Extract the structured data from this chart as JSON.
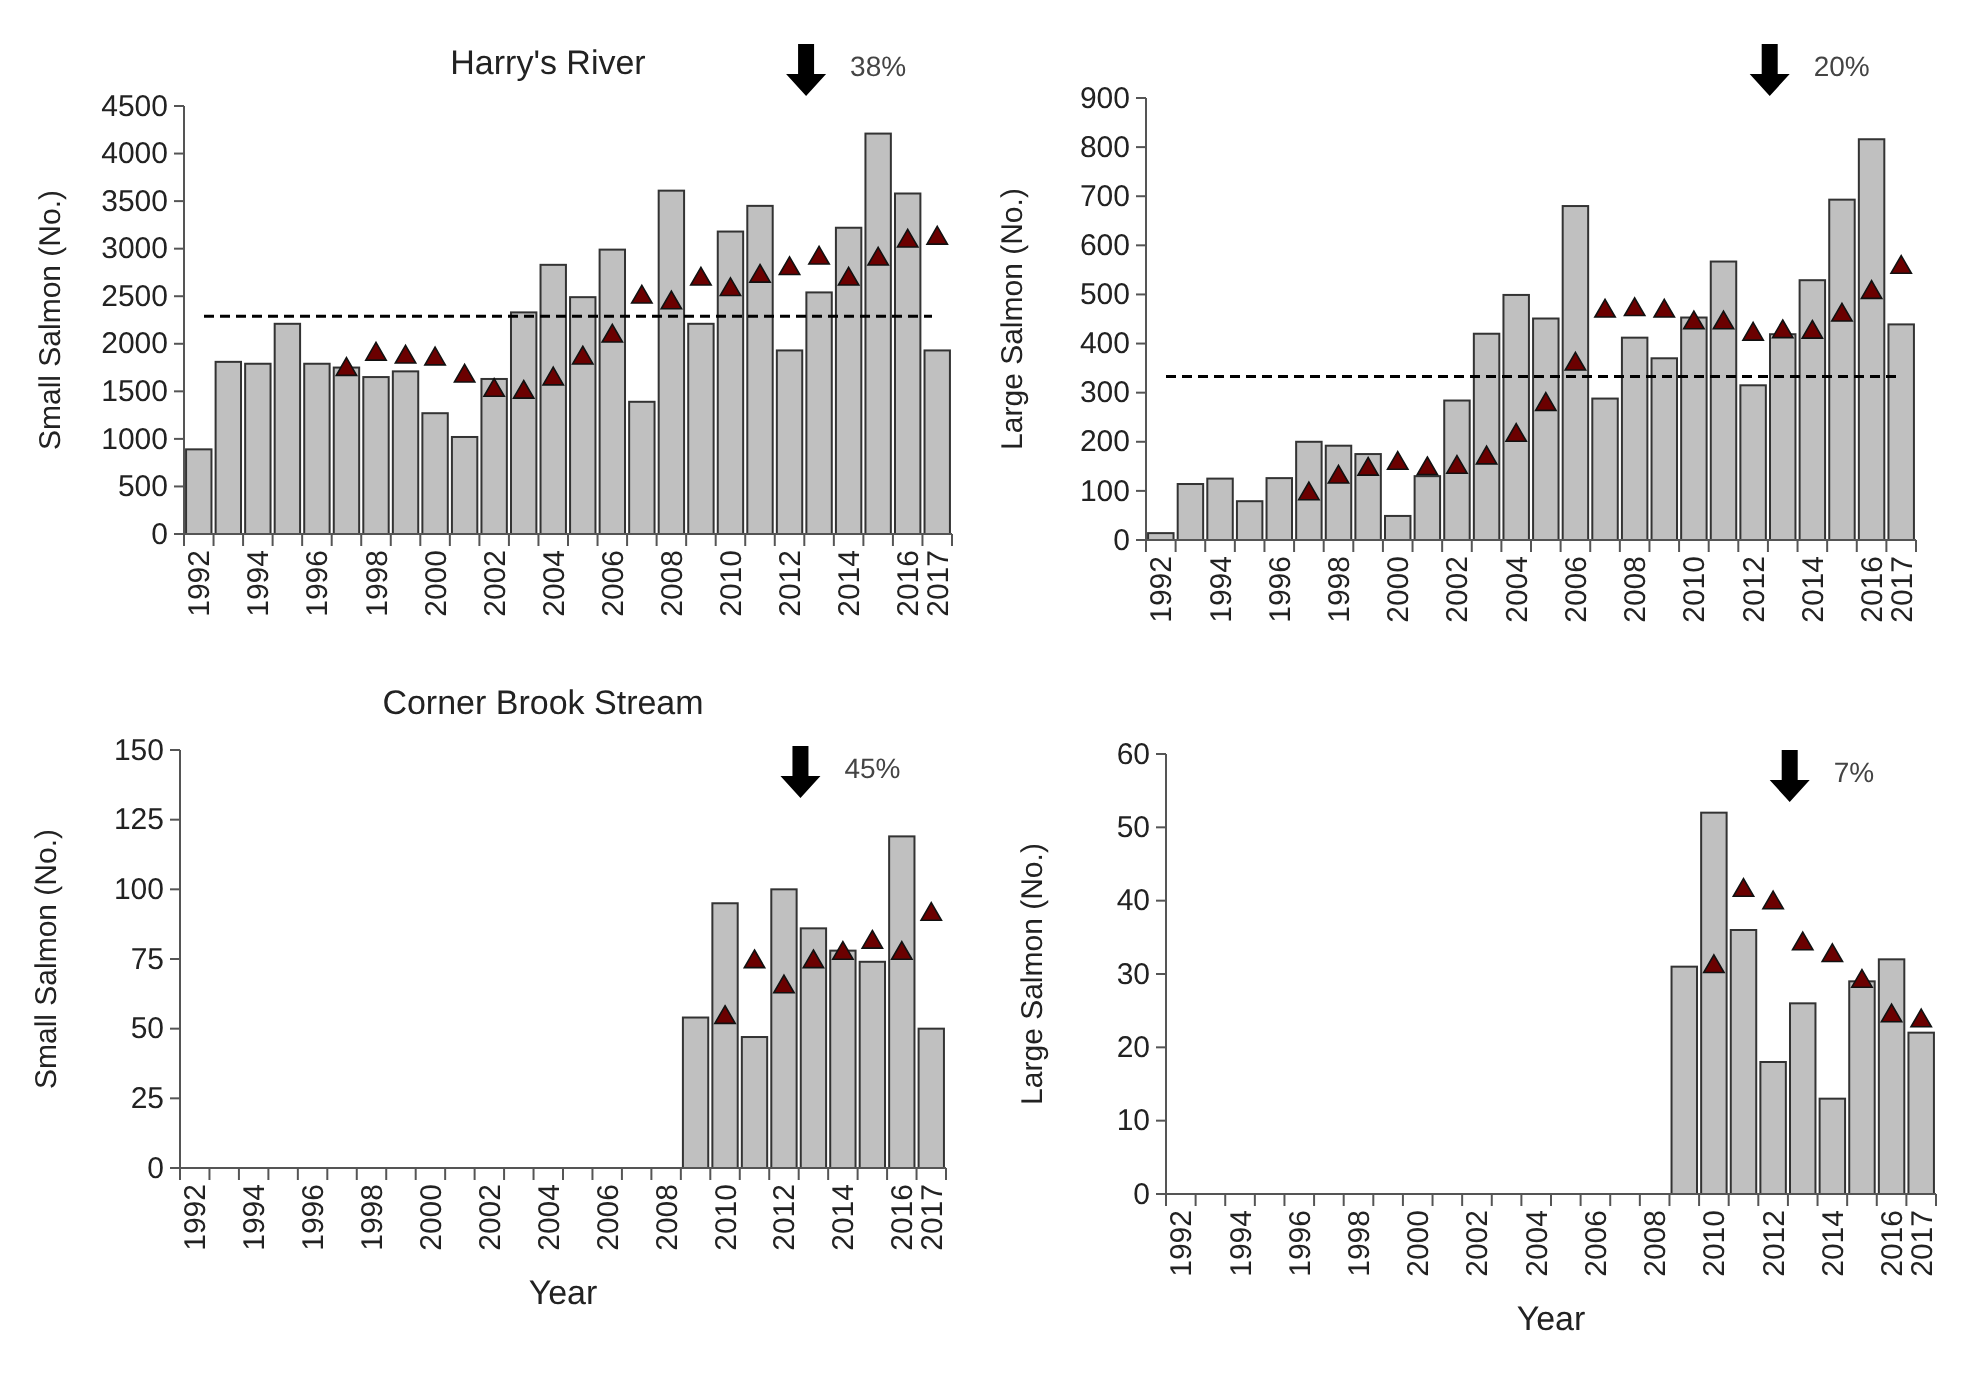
{
  "chart_data": [
    {
      "type": "bar",
      "title": "Harry's River",
      "ylabel": "Small Salmon  (No.)",
      "categories": [
        "1992",
        null,
        "1994",
        null,
        "1996",
        null,
        "1998",
        null,
        "2000",
        null,
        "2002",
        null,
        "2004",
        null,
        "2006",
        null,
        "2008",
        null,
        "2010",
        null,
        "2012",
        null,
        "2014",
        null,
        "2016",
        "2017"
      ],
      "series": [
        {
          "type": "bar",
          "color": "#c0c0c0",
          "values": [
            890,
            1810,
            1790,
            2210,
            1790,
            1750,
            1650,
            1710,
            1270,
            1020,
            1630,
            2330,
            2830,
            2490,
            2990,
            1390,
            3610,
            2210,
            3180,
            3450,
            1930,
            2540,
            3220,
            4210,
            3580,
            1930
          ]
        },
        {
          "type": "scatter",
          "color": "#6b0000",
          "marker": "triangle",
          "values": [
            null,
            null,
            null,
            null,
            null,
            1730,
            1890,
            1860,
            1840,
            1660,
            1510,
            1490,
            1630,
            1850,
            2080,
            2490,
            2430,
            2680,
            2570,
            2710,
            2790,
            2900,
            2680,
            2890,
            3080,
            3110
          ]
        }
      ],
      "ylim": [
        0,
        4500
      ],
      "yticks": [
        0,
        500,
        1000,
        1500,
        2000,
        2500,
        3000,
        3500,
        4000,
        4500
      ],
      "ref_lines": [
        {
          "axis": "y",
          "value": 2290,
          "line_style": "dashed"
        }
      ],
      "annotations": [
        "38%"
      ]
    },
    {
      "type": "bar",
      "ylabel": "Large Salmon  (No.)",
      "categories": [
        "1992",
        null,
        "1994",
        null,
        "1996",
        null,
        "1998",
        null,
        "2000",
        null,
        "2002",
        null,
        "2004",
        null,
        "2006",
        null,
        "2008",
        null,
        "2010",
        null,
        "2012",
        null,
        "2014",
        null,
        "2016",
        "2017"
      ],
      "series": [
        {
          "type": "bar",
          "color": "#c0c0c0",
          "values": [
            14,
            114,
            125,
            79,
            126,
            200,
            192,
            175,
            49,
            130,
            284,
            420,
            499,
            451,
            680,
            288,
            412,
            370,
            453,
            567,
            315,
            419,
            529,
            693,
            816,
            439
          ]
        },
        {
          "type": "scatter",
          "color": "#6b0000",
          "marker": "triangle",
          "values": [
            null,
            null,
            null,
            null,
            null,
            94,
            128,
            144,
            156,
            145,
            148,
            167,
            213,
            276,
            358,
            466,
            469,
            466,
            442,
            442,
            419,
            424,
            423,
            458,
            504,
            555
          ]
        }
      ],
      "ylim": [
        0,
        900
      ],
      "yticks": [
        0,
        100,
        200,
        300,
        400,
        500,
        600,
        700,
        800,
        900
      ],
      "ref_lines": [
        {
          "axis": "y",
          "value": 333,
          "line_style": "dashed"
        }
      ],
      "annotations": [
        "20%"
      ]
    },
    {
      "type": "bar",
      "title": "Corner Brook Stream",
      "xlabel": "Year",
      "ylabel": "Small Salmon  (No.)",
      "categories": [
        "1992",
        null,
        "1994",
        null,
        "1996",
        null,
        "1998",
        null,
        "2000",
        null,
        "2002",
        null,
        "2004",
        null,
        "2006",
        null,
        "2008",
        null,
        "2010",
        null,
        "2012",
        null,
        "2014",
        null,
        "2016",
        "2017"
      ],
      "series": [
        {
          "type": "bar",
          "color": "#c0c0c0",
          "values": [
            null,
            null,
            null,
            null,
            null,
            null,
            null,
            null,
            null,
            null,
            null,
            null,
            null,
            null,
            null,
            null,
            null,
            54,
            95,
            47,
            100,
            86,
            78,
            74,
            119,
            50
          ]
        },
        {
          "type": "scatter",
          "color": "#6b0000",
          "marker": "triangle",
          "values": [
            null,
            null,
            null,
            null,
            null,
            null,
            null,
            null,
            null,
            null,
            null,
            null,
            null,
            null,
            null,
            null,
            null,
            null,
            54,
            74,
            65,
            74,
            77,
            81,
            77,
            91
          ]
        }
      ],
      "ylim": [
        0,
        150
      ],
      "yticks": [
        0,
        25,
        50,
        75,
        100,
        125,
        150
      ],
      "annotations": [
        "45%"
      ]
    },
    {
      "type": "bar",
      "xlabel": "Year",
      "ylabel": "Large Salmon  (No.)",
      "categories": [
        "1992",
        null,
        "1994",
        null,
        "1996",
        null,
        "1998",
        null,
        "2000",
        null,
        "2002",
        null,
        "2004",
        null,
        "2006",
        null,
        "2008",
        null,
        "2010",
        null,
        "2012",
        null,
        "2014",
        null,
        "2016",
        "2017"
      ],
      "series": [
        {
          "type": "bar",
          "color": "#c0c0c0",
          "values": [
            null,
            null,
            null,
            null,
            null,
            null,
            null,
            null,
            null,
            null,
            null,
            null,
            null,
            null,
            null,
            null,
            null,
            31,
            52,
            36,
            18,
            26,
            13,
            29,
            32,
            22
          ]
        },
        {
          "type": "scatter",
          "color": "#6b0000",
          "marker": "triangle",
          "values": [
            null,
            null,
            null,
            null,
            null,
            null,
            null,
            null,
            null,
            null,
            null,
            null,
            null,
            null,
            null,
            null,
            null,
            null,
            31,
            41.4,
            39.7,
            34.1,
            32.5,
            29,
            24.3,
            23.6
          ]
        }
      ],
      "ylim": [
        0,
        60
      ],
      "yticks": [
        0,
        10,
        20,
        30,
        40,
        50,
        60
      ],
      "annotations": [
        "7%"
      ]
    }
  ]
}
